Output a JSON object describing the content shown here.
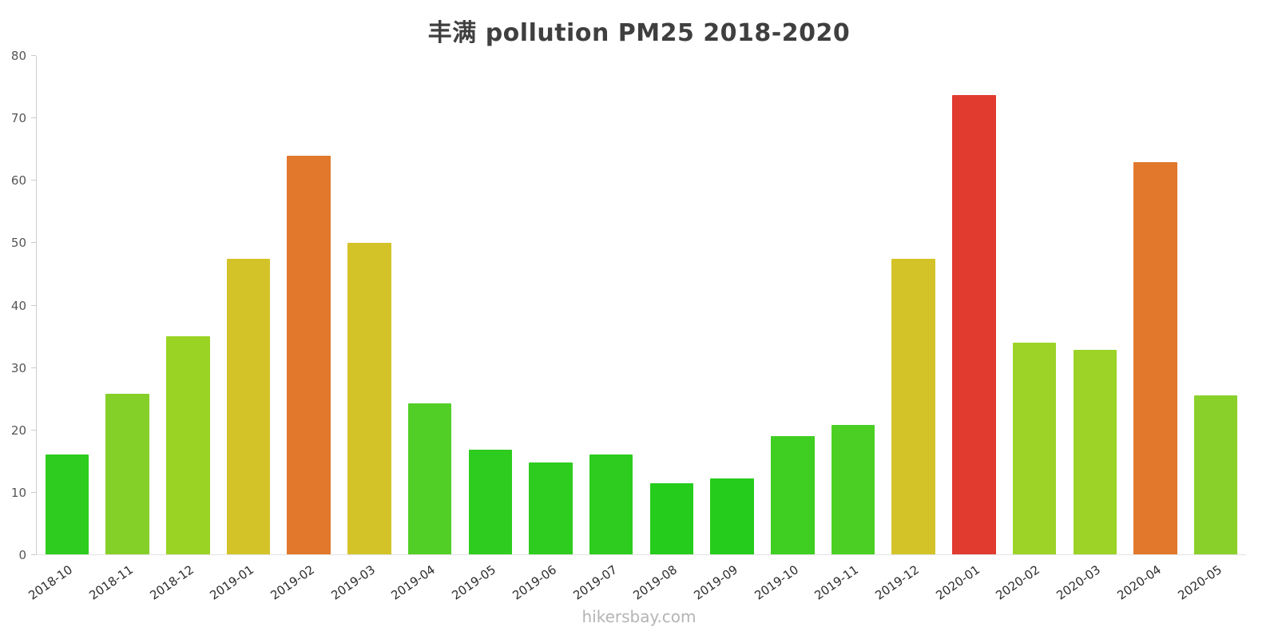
{
  "title": "丰满 pollution PM25 2018-2020",
  "footer": "hikersbay.com",
  "chart_data": {
    "type": "bar",
    "title": "丰满 pollution PM25 2018-2020",
    "xlabel": "",
    "ylabel": "",
    "ylim": [
      0,
      80
    ],
    "yticks": [
      0,
      10,
      20,
      30,
      40,
      50,
      60,
      70,
      80
    ],
    "grid": false,
    "legend": "none",
    "categories": [
      "2018-10",
      "2018-11",
      "2018-12",
      "2019-01",
      "2019-02",
      "2019-03",
      "2019-04",
      "2019-05",
      "2019-06",
      "2019-07",
      "2019-08",
      "2019-09",
      "2019-10",
      "2019-11",
      "2019-12",
      "2020-01",
      "2020-02",
      "2020-03",
      "2020-04",
      "2020-05"
    ],
    "values": [
      16,
      25.8,
      35,
      47.5,
      64,
      50,
      24.2,
      16.8,
      14.8,
      16,
      11.4,
      12.2,
      19,
      20.8,
      47.5,
      73.7,
      34,
      32.8,
      63,
      25.5
    ],
    "colors": [
      "#2ecc1e",
      "#85d028",
      "#9ad324",
      "#d3c329",
      "#e1782b",
      "#d3c329",
      "#52cf27",
      "#2ecc1e",
      "#2ecc1e",
      "#2ecc1e",
      "#26cc1b",
      "#26cc1b",
      "#3fce22",
      "#4bcf25",
      "#d3c329",
      "#e13b30",
      "#9cd326",
      "#9cd326",
      "#e1782b",
      "#8ad02a"
    ],
    "axis_color": "#cccccc",
    "tick_label_color": "#565656",
    "x_label_color": "#2e2e2e"
  }
}
